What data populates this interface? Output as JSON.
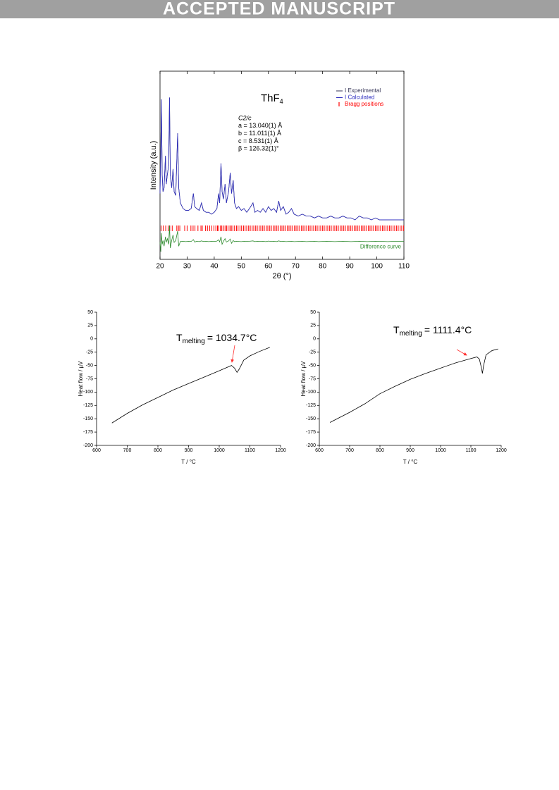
{
  "header": "ACCEPTED MANUSCRIPT",
  "chart_data": [
    {
      "type": "line",
      "title": {
        "main": "ThF",
        "sub": "4"
      },
      "annotations": [
        "C2/c",
        "a = 13.040(1) Å",
        "b = 11.011(1) Å",
        "c = 8.531(1) Å",
        "β = 126.32(1)°"
      ],
      "xlabel": "2θ (°)",
      "ylabel": "Intensity (a.u.)",
      "x": [
        20,
        20.3,
        20.5,
        20.8,
        21.1,
        21.5,
        22,
        22.3,
        22.7,
        23.2,
        23.5,
        23.8,
        24.3,
        24.8,
        25.2,
        25.8,
        26.5,
        26.9,
        27.5,
        28.5,
        29.5,
        30.5,
        31.5,
        32.3,
        32.8,
        33.5,
        34.5,
        35.3,
        36,
        37,
        38,
        39,
        40,
        41,
        41.6,
        42,
        42.5,
        42.9,
        43.4,
        44,
        44.5,
        45.3,
        45.9,
        46.4,
        47,
        47.5,
        48.2,
        49,
        50,
        51,
        52,
        53,
        54.3,
        55,
        56,
        57,
        58,
        59,
        60,
        61,
        62,
        63,
        63.8,
        64.5,
        65.5,
        66.5,
        67.5,
        68.5,
        69.5,
        71,
        72.5,
        74,
        75.5,
        77,
        78.5,
        80,
        81.5,
        83,
        84.5,
        86,
        87.5,
        89,
        90.5,
        92,
        93.5,
        95,
        96.5,
        98,
        99.5,
        101,
        102.5,
        104,
        105.5,
        107,
        108.5,
        110
      ],
      "series": [
        {
          "name": "I Experimental",
          "color": "#333355",
          "values": [
            35,
            60,
            85,
            45,
            36,
            38,
            55,
            40,
            45,
            50,
            86,
            45,
            38,
            48,
            36,
            34,
            67,
            38,
            30,
            27,
            26,
            26,
            27,
            35,
            28,
            27,
            26,
            30,
            26,
            25,
            25,
            24,
            25,
            27,
            35,
            30,
            51,
            36,
            32,
            40,
            30,
            36,
            46,
            35,
            42,
            30,
            27,
            28,
            26,
            27,
            25,
            27,
            30,
            25,
            26,
            25,
            27,
            25,
            28,
            26,
            27,
            25,
            31,
            26,
            28,
            24,
            25,
            27,
            24,
            23,
            24,
            23,
            23,
            22,
            23,
            22,
            22,
            23,
            22,
            22,
            23,
            22,
            22,
            21,
            23,
            22,
            22,
            21,
            22,
            21,
            21,
            21,
            21,
            21,
            21,
            21
          ]
        },
        {
          "name": "I Calculated",
          "color": "#3030c0",
          "values": [
            35,
            60,
            85,
            45,
            36,
            38,
            55,
            40,
            45,
            50,
            86,
            45,
            38,
            48,
            36,
            34,
            67,
            38,
            30,
            27,
            26,
            26,
            27,
            35,
            28,
            27,
            26,
            30,
            26,
            25,
            25,
            24,
            25,
            27,
            35,
            30,
            51,
            36,
            32,
            40,
            30,
            36,
            46,
            35,
            42,
            30,
            27,
            28,
            26,
            27,
            25,
            27,
            30,
            25,
            26,
            25,
            27,
            25,
            28,
            26,
            27,
            25,
            31,
            26,
            28,
            24,
            25,
            27,
            24,
            23,
            24,
            23,
            23,
            22,
            23,
            22,
            22,
            23,
            22,
            22,
            23,
            22,
            22,
            21,
            23,
            22,
            22,
            21,
            22,
            21,
            21,
            21,
            21,
            21,
            21,
            21
          ]
        },
        {
          "name": "Bragg positions",
          "color": "#ff0000",
          "x": [
            20.4,
            21.2,
            22.1,
            23.0,
            23.6,
            24.5,
            26.2,
            26.8,
            27.3,
            29.1,
            30.0,
            31.4,
            32.2,
            32.9,
            34.0,
            35.1,
            35.6,
            36.8,
            37.5,
            38.3,
            39.0,
            39.9,
            40.6,
            41.2,
            41.7,
            42.3,
            42.8,
            43.4,
            44.0,
            44.6,
            45.1,
            45.8,
            46.3,
            46.9,
            47.5,
            48.2,
            48.8,
            49.5,
            50.1,
            50.8,
            51.4,
            52.0,
            52.7,
            53.3,
            54.0,
            54.6,
            55.3,
            55.9,
            56.6,
            57.2,
            57.9,
            58.5,
            59.2,
            59.8,
            60.5,
            61.1,
            61.8,
            62.4,
            63.1,
            63.7,
            64.4,
            65.0,
            65.7,
            66.3,
            67.0,
            67.6,
            68.3,
            68.9,
            69.6,
            70.2,
            70.9,
            71.5,
            72.2,
            72.8,
            73.5,
            74.1,
            74.8,
            75.4,
            76.1,
            76.7,
            77.4,
            78.0,
            78.7,
            79.3,
            80.0,
            80.6,
            81.3,
            81.9,
            82.6,
            83.2,
            83.9,
            84.5,
            85.2,
            85.8,
            86.5,
            87.1,
            87.8,
            88.4,
            89.1,
            89.7,
            90.4,
            91.0,
            91.7,
            92.3,
            93.0,
            93.6,
            94.3,
            94.9,
            95.6,
            96.2,
            96.9,
            97.5,
            98.2,
            98.8,
            99.5,
            100.1,
            100.8,
            101.4,
            102.1,
            102.7,
            103.4,
            104.0,
            104.7,
            105.3,
            106.0,
            106.6,
            107.3,
            107.9,
            108.6,
            109.2,
            109.9
          ]
        },
        {
          "name": "Difference curve",
          "color": "#2e8b2e",
          "legend": false,
          "values": [
            9,
            4,
            14,
            8,
            10,
            7,
            12,
            9,
            11,
            8,
            18,
            6,
            10,
            13,
            9,
            10,
            15,
            7,
            9.5,
            9.6,
            9.4,
            9.6,
            9.5,
            10.5,
            9.2,
            9.6,
            9.4,
            9.8,
            9.5,
            9.6,
            9.4,
            9.6,
            9.5,
            9.7,
            10.4,
            9.3,
            12,
            8,
            9.6,
            11,
            9.2,
            9.8,
            10.8,
            8.5,
            10,
            9.4,
            9.6,
            9.5,
            9.4,
            9.6,
            9.5,
            9.6,
            9.8,
            9.4,
            9.6,
            9.5,
            9.6,
            9.4,
            9.7,
            9.5,
            9.6,
            9.4,
            9.8,
            9.5,
            9.6,
            9.4,
            9.5,
            9.6,
            9.4,
            9.5,
            9.6,
            9.4,
            9.5,
            9.6,
            9.4,
            9.5,
            9.6,
            9.5,
            9.4,
            9.5,
            9.6,
            9.5,
            9.4,
            9.5,
            9.6,
            9.5,
            9.4,
            9.5,
            9.6,
            9.5,
            9.5,
            9.4,
            9.5,
            9.5,
            9.5,
            9.5
          ]
        }
      ],
      "xlim": [
        20,
        110
      ],
      "xticks": [
        20,
        30,
        40,
        50,
        60,
        70,
        80,
        90,
        100,
        110
      ],
      "ylim": [
        0,
        100
      ],
      "legend": "upper right"
    },
    {
      "type": "line",
      "xlabel": "T / °C",
      "ylabel": "Heat flow / µV",
      "annotation": {
        "main": "T",
        "sub": "melting",
        "rest": "= 1034.7°C"
      },
      "x": [
        650,
        700,
        750,
        800,
        850,
        900,
        950,
        1000,
        1040,
        1050,
        1058,
        1065,
        1080,
        1100,
        1130,
        1165
      ],
      "series": [
        {
          "color": "#000000",
          "values": [
            -158,
            -140,
            -124,
            -110,
            -96,
            -84,
            -72,
            -60,
            -50,
            -55,
            -63,
            -57,
            -40,
            -32,
            -24,
            -16
          ]
        }
      ],
      "xlim": [
        600,
        1200
      ],
      "xticks": [
        600,
        700,
        800,
        900,
        1000,
        1100,
        1200
      ],
      "ylim": [
        -200,
        50
      ],
      "yticks": [
        -200,
        -175,
        -150,
        -125,
        -100,
        -75,
        -50,
        -25,
        0,
        25,
        50
      ]
    },
    {
      "type": "line",
      "xlabel": "T / °C",
      "ylabel": "Heat flow / µV",
      "annotation": {
        "main": "T",
        "sub": "melting",
        "rest": "= 1111.4°C"
      },
      "x": [
        635,
        700,
        750,
        800,
        850,
        900,
        950,
        1000,
        1050,
        1100,
        1120,
        1128,
        1135,
        1138,
        1142,
        1150,
        1170,
        1190
      ],
      "series": [
        {
          "color": "#000000",
          "values": [
            -157,
            -138,
            -122,
            -103,
            -89,
            -76,
            -65,
            -55,
            -45,
            -37,
            -34,
            -38,
            -55,
            -65,
            -50,
            -30,
            -22,
            -19
          ]
        }
      ],
      "xlim": [
        600,
        1200
      ],
      "xticks": [
        600,
        700,
        800,
        900,
        1000,
        1100,
        1200
      ],
      "ylim": [
        -200,
        50
      ],
      "yticks": [
        -200,
        -175,
        -150,
        -125,
        -100,
        -75,
        -50,
        -25,
        0,
        25,
        50
      ]
    }
  ]
}
